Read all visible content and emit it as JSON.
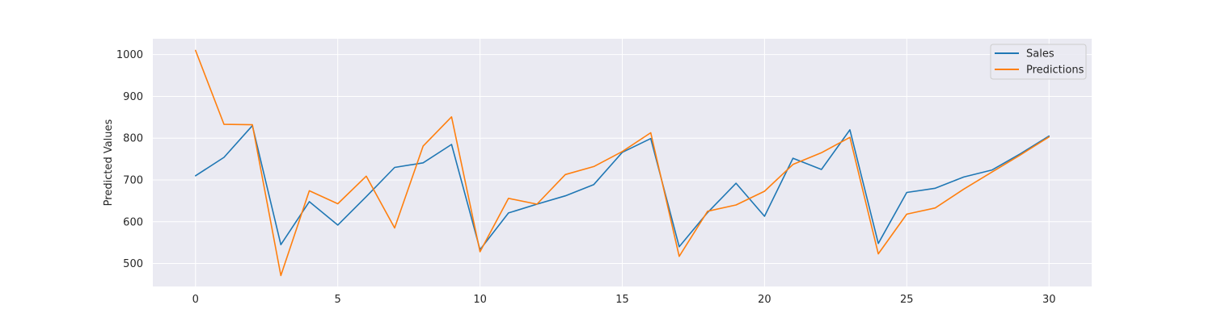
{
  "chart_data": {
    "type": "line",
    "title": "",
    "xlabel": "",
    "ylabel": "Predicted Values",
    "xlim": [
      -1.5,
      31.5
    ],
    "ylim": [
      445,
      1038
    ],
    "xticks": [
      0,
      5,
      10,
      15,
      20,
      25,
      30
    ],
    "yticks": [
      500,
      600,
      700,
      800,
      900,
      1000
    ],
    "grid": true,
    "legend_position": "top-right",
    "x": [
      0,
      1,
      2,
      3,
      4,
      5,
      6,
      7,
      8,
      9,
      10,
      11,
      12,
      13,
      14,
      15,
      16,
      17,
      18,
      19,
      20,
      21,
      22,
      23,
      24,
      25,
      26,
      27,
      28,
      29,
      30
    ],
    "series": [
      {
        "name": "Sales",
        "color": "#1f77b4",
        "values": [
          710,
          754,
          830,
          545,
          648,
          592,
          660,
          730,
          741,
          785,
          533,
          621,
          642,
          662,
          689,
          766,
          799,
          540,
          622,
          692,
          613,
          752,
          725,
          820,
          548,
          670,
          680,
          707,
          724,
          763,
          805
        ]
      },
      {
        "name": "Predictions",
        "color": "#ff7f0e",
        "values": [
          1010,
          833,
          832,
          471,
          674,
          643,
          709,
          585,
          781,
          851,
          528,
          656,
          642,
          713,
          732,
          768,
          813,
          517,
          625,
          640,
          673,
          737,
          765,
          802,
          523,
          618,
          633,
          678,
          719,
          760,
          803
        ]
      }
    ]
  }
}
